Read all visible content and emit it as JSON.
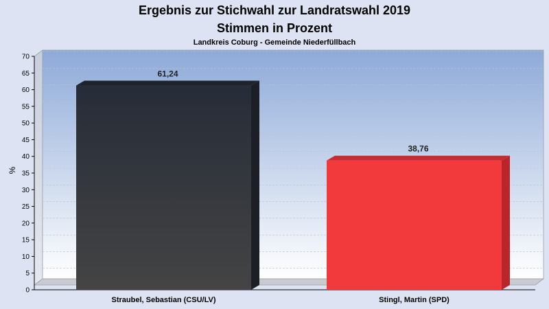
{
  "chart_data": {
    "type": "bar",
    "title": "Ergebnis zur Stichwahl zur Landratswahl 2019",
    "title_line2": "Stimmen in Prozent",
    "subtitle": "Landkreis Coburg - Gemeinde Niederfüllbach",
    "xlabel": "",
    "ylabel": "%",
    "ylim": [
      0,
      70
    ],
    "ytick_step": 5,
    "grid": true,
    "categories": [
      "Straubel, Sebastian (CSU/LV)",
      "Stingl, Martin (SPD)"
    ],
    "values": [
      61.24,
      38.76
    ],
    "value_labels": [
      "61,24",
      "38,76"
    ],
    "colors": [
      "#2f333b",
      "#f23a3d"
    ]
  }
}
